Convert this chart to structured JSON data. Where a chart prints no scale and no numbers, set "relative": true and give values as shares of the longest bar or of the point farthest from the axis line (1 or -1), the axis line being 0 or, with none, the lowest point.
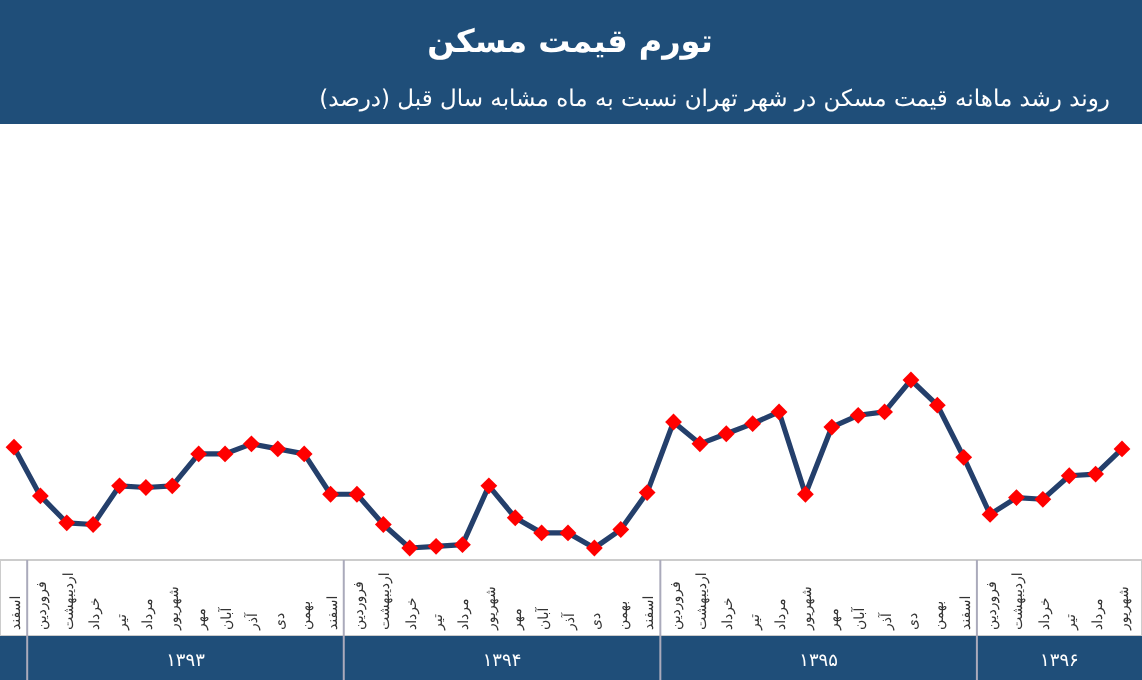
{
  "chart_data": {
    "type": "line",
    "title": "تورم قیمت مسکن",
    "subtitle": "روند رشد ماهانه قیمت مسکن در شهر تهران نسبت به ماه مشابه سال قبل (درصد)",
    "categories": [
      "اسفند",
      "فروردین",
      "اردیبهشت",
      "خرداد",
      "تیر",
      "مرداد",
      "شهریور",
      "مهر",
      "آبان",
      "آذر",
      "دی",
      "بهمن",
      "اسفند",
      "فروردین",
      "اردیبهشت",
      "خرداد",
      "تیر",
      "مرداد",
      "شهریور",
      "مهر",
      "آبان",
      "آذر",
      "دی",
      "بهمن",
      "اسفند",
      "فروردین",
      "اردیبهشت",
      "خرداد",
      "تیر",
      "مرداد",
      "شهریور",
      "مهر",
      "آبان",
      "آذر",
      "دی",
      "بهمن",
      "اسفند",
      "فروردین",
      "اردیبهشت",
      "خرداد",
      "تیر",
      "مرداد",
      "شهریور"
    ],
    "series": [
      {
        "color": "#243f6b",
        "colors": [
          "#ff0000",
          "#ff0000",
          "#ff0000",
          "#ff0000",
          "#ff0000",
          "#ff0000",
          "#ff0000",
          "#ff0000",
          "#ff0000",
          "#ff0000",
          "#ff0000",
          "#ff0000",
          "#ff0000",
          "#ff0000",
          "#ff0000",
          "#ff0000",
          "#ff0000",
          "#ff0000",
          "#ff0000",
          "#ff0000",
          "#ff0000",
          "#ff0000",
          "#ff0000",
          "#ff0000",
          "#ff0000",
          "#ff0000",
          "#ff0000",
          "#ff0000",
          "#ff0000",
          "#ff0000",
          "#ff0000",
          "#ff0000",
          "#ff0000",
          "#ff0000",
          "#ff0000",
          "#ff0000",
          "#ff0000",
          "#ff0000",
          "#ff0000",
          "#ff0000",
          "#ff0000",
          "#ff0000",
          "#ff0000"
        ],
        "values": [
          0.6,
          0.31,
          0.15,
          0.14,
          0.37,
          0.36,
          0.37,
          0.56,
          0.56,
          0.62,
          0.59,
          0.56,
          0.32,
          0.32,
          0.14,
          0.0,
          0.01,
          0.02,
          0.37,
          0.18,
          0.09,
          0.09,
          0.0,
          0.11,
          0.33,
          0.75,
          0.62,
          0.68,
          0.74,
          0.81,
          0.32,
          0.72,
          0.79,
          0.81,
          1.0,
          0.85,
          0.54,
          0.2,
          0.3,
          0.29,
          0.43,
          0.44,
          0.59
        ]
      }
    ],
    "relative": true,
    "marker": "diamond",
    "line_style": "solid",
    "annotations": [
      "۱۳۹۳",
      "۱۳۹۴",
      "۱۳۹۵",
      "۱۳۹۶"
    ]
  }
}
